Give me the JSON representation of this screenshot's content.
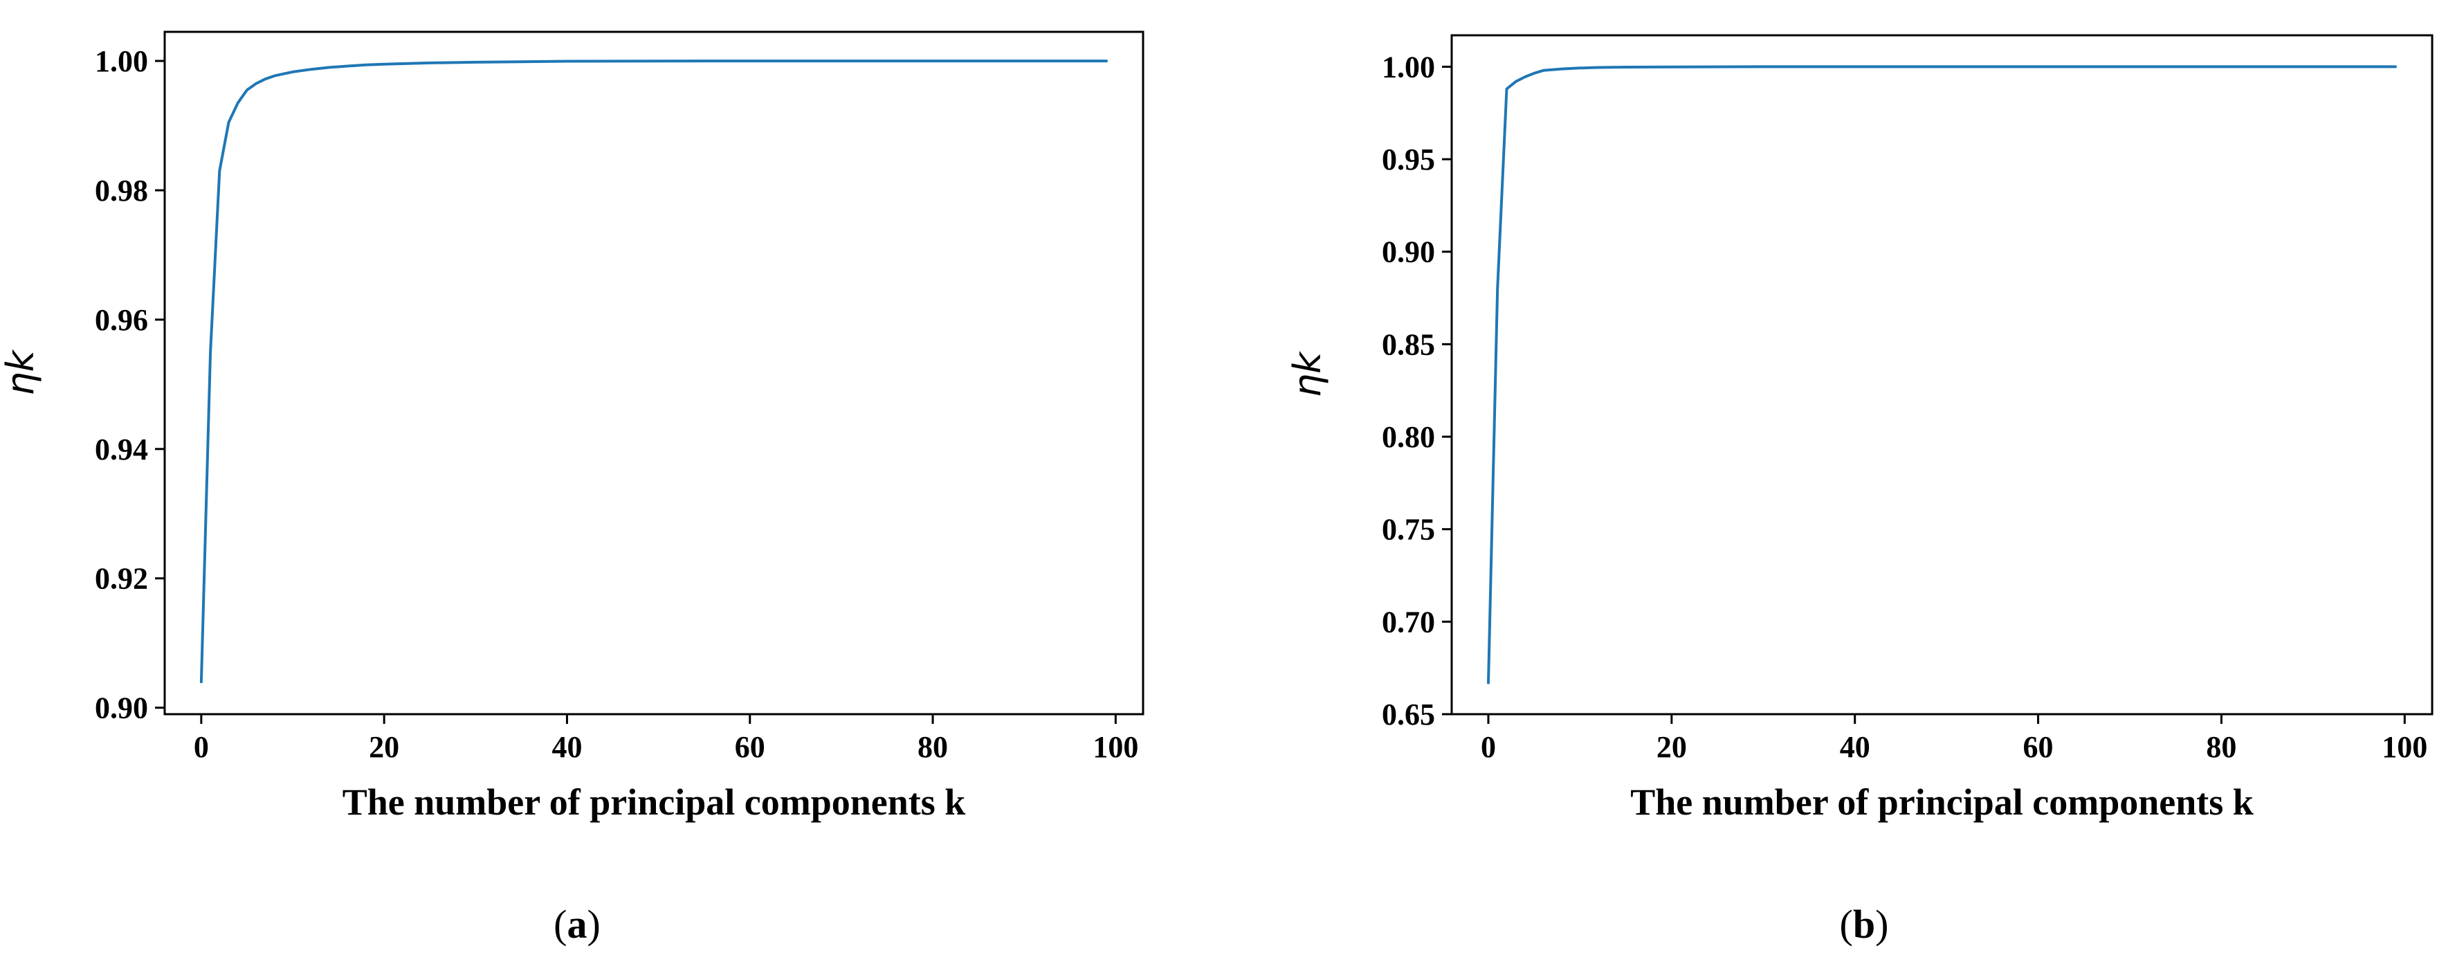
{
  "chart_data": [
    {
      "type": "line",
      "panel_label": "(a)",
      "panel_letter": "a",
      "xlabel": "The number of principal components k",
      "ylabel": "ηk",
      "xlim": [
        -4,
        103
      ],
      "ylim": [
        0.899,
        1.0045
      ],
      "xticks": [
        0,
        20,
        40,
        60,
        80,
        100
      ],
      "xtick_labels": [
        "0",
        "20",
        "40",
        "60",
        "80",
        "100"
      ],
      "yticks": [
        0.9,
        0.92,
        0.94,
        0.96,
        0.98,
        1.0
      ],
      "ytick_labels": [
        "0.90",
        "0.92",
        "0.94",
        "0.96",
        "0.98",
        "1.00"
      ],
      "grid": false,
      "legend": "none",
      "color": "#1f77b4",
      "series": [
        {
          "x": [
            0,
            1,
            2,
            3,
            4,
            5,
            6,
            7,
            8,
            9,
            10,
            12,
            14,
            16,
            18,
            20,
            25,
            30,
            40,
            50,
            60,
            70,
            80,
            90,
            99
          ],
          "values": [
            0.904,
            0.955,
            0.983,
            0.9905,
            0.9935,
            0.9955,
            0.9965,
            0.9972,
            0.9977,
            0.998,
            0.9983,
            0.9987,
            0.999,
            0.9992,
            0.9994,
            0.9995,
            0.9997,
            0.9998,
            0.99995,
            0.99998,
            1.0,
            1.0,
            1.0,
            1.0,
            1.0
          ]
        }
      ]
    },
    {
      "type": "line",
      "panel_label": "(b)",
      "panel_letter": "b",
      "xlabel": "The number of principal components k",
      "ylabel": "ηk",
      "xlim": [
        -4,
        103
      ],
      "ylim": [
        0.65,
        1.017
      ],
      "xticks": [
        0,
        20,
        40,
        60,
        80,
        100
      ],
      "xtick_labels": [
        "0",
        "20",
        "40",
        "60",
        "80",
        "100"
      ],
      "yticks": [
        0.65,
        0.7,
        0.75,
        0.8,
        0.85,
        0.9,
        0.95,
        1.0
      ],
      "ytick_labels": [
        "0.65",
        "0.70",
        "0.75",
        "0.80",
        "0.85",
        "0.90",
        "0.95",
        "1.00"
      ],
      "grid": false,
      "legend": "none",
      "color": "#1f77b4",
      "series": [
        {
          "x": [
            0,
            1,
            2,
            3,
            4,
            5,
            6,
            8,
            10,
            12,
            15,
            20,
            30,
            40,
            60,
            80,
            99
          ],
          "values": [
            0.667,
            0.88,
            0.988,
            0.992,
            0.9945,
            0.9965,
            0.998,
            0.9988,
            0.9993,
            0.9996,
            0.9998,
            0.9999,
            1.0,
            1.0,
            1.0,
            1.0,
            1.0
          ]
        }
      ]
    }
  ]
}
